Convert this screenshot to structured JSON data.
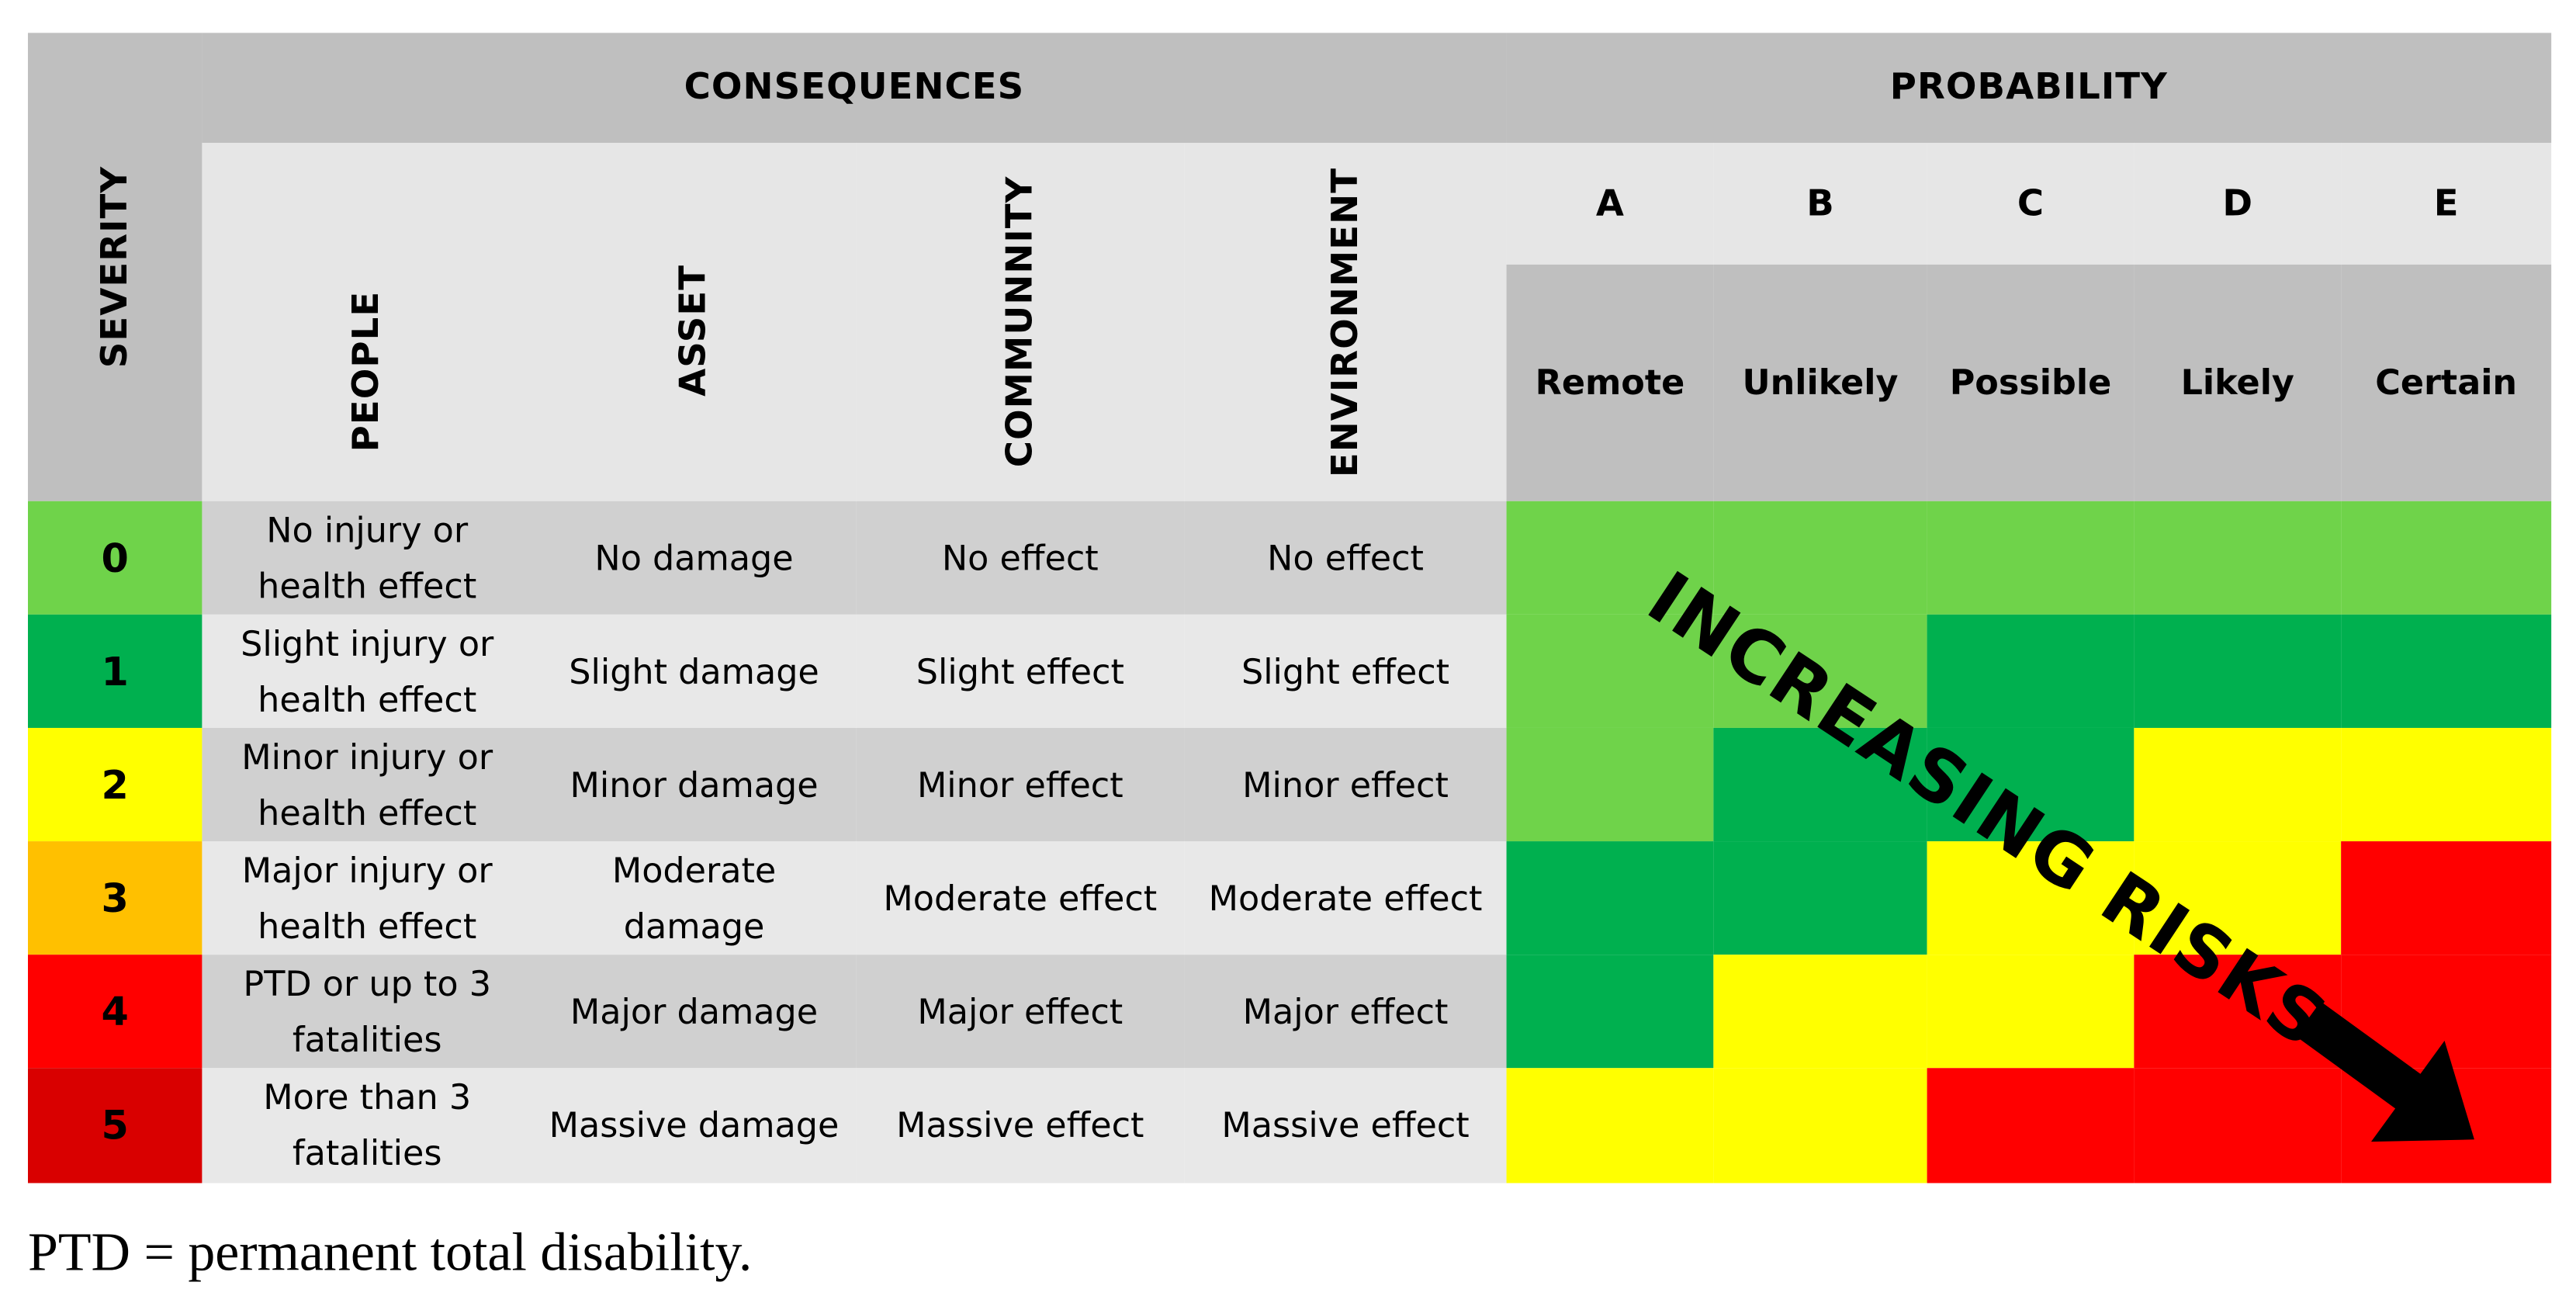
{
  "headers": {
    "consequences": "CONSEQUENCES",
    "probability": "PROBABILITY",
    "severity": "SEVERITY",
    "columns": [
      "PEOPLE",
      "ASSET",
      "COMMUNNITY",
      "ENVIRONMENT"
    ]
  },
  "probability": {
    "letters": [
      "A",
      "B",
      "C",
      "D",
      "E"
    ],
    "labels": [
      "Remote",
      "Unlikely",
      "Possible",
      "Likely",
      "Certain"
    ]
  },
  "rows": [
    {
      "severity": "0",
      "people": "No injury or health effect",
      "asset": "No damage",
      "community": "No effect",
      "environment": "No effect"
    },
    {
      "severity": "1",
      "people": "Slight injury or health effect",
      "asset": "Slight damage",
      "community": "Slight effect",
      "environment": "Slight effect"
    },
    {
      "severity": "2",
      "people": "Minor injury or health effect",
      "asset": "Minor damage",
      "community": "Minor effect",
      "environment": "Minor effect"
    },
    {
      "severity": "3",
      "people": "Major injury or health effect",
      "asset": "Moderate damage",
      "community": "Moderate effect",
      "environment": "Moderate effect"
    },
    {
      "severity": "4",
      "people": "PTD or up to 3 fatalities",
      "asset": "Major damage",
      "community": "Major effect",
      "environment": "Major effect"
    },
    {
      "severity": "5",
      "people": "More than 3 fatalities",
      "asset": "Massive damage",
      "community": "Massive effect",
      "environment": "Massive effect"
    }
  ],
  "severity_colors": [
    "#6fd34a",
    "#00b04f",
    "#ffff00",
    "#ffc000",
    "#ff0000",
    "#d90000"
  ],
  "risk_matrix": [
    [
      "low",
      "low",
      "low",
      "low",
      "low"
    ],
    [
      "low",
      "low",
      "medium",
      "medium",
      "medium"
    ],
    [
      "low",
      "medium",
      "medium",
      "high",
      "high"
    ],
    [
      "medium",
      "medium",
      "high",
      "high",
      "critical"
    ],
    [
      "medium",
      "high",
      "high",
      "critical",
      "critical"
    ],
    [
      "high",
      "high",
      "critical",
      "critical",
      "critical"
    ]
  ],
  "risk_colors": {
    "low": "#6fd34a",
    "medium": "#00b04f",
    "high": "#ffff00",
    "critical": "#ff0000"
  },
  "overlay_label": "INCREASING RISKS",
  "footnote": "PTD = permanent total disability."
}
